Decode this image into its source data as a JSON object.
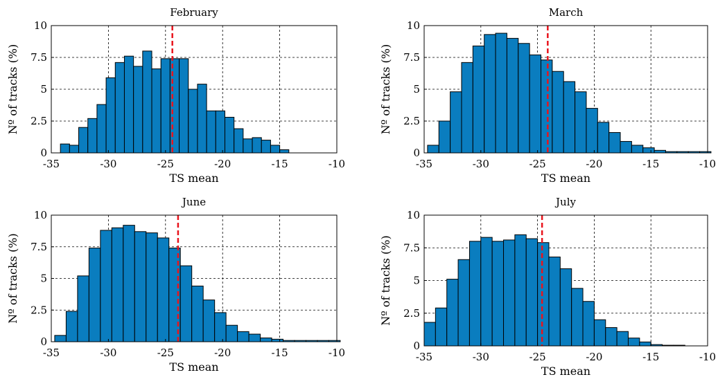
{
  "chart_data": [
    {
      "type": "bar",
      "title": "February",
      "xlabel": "TS mean",
      "ylabel": "Nº of tracks (%)",
      "xlim": [
        -35,
        -10
      ],
      "ylim": [
        0,
        10
      ],
      "xticks": [
        "-35",
        "-30",
        "-25",
        "-20",
        "-15",
        "-10"
      ],
      "yticks": [
        "0",
        "2.5",
        "5",
        "7.5",
        "10"
      ],
      "grid": true,
      "bin_width": 0.8,
      "bins_start": [
        -34.2,
        -33.4,
        -32.6,
        -31.8,
        -31.0,
        -30.2,
        -29.4,
        -28.6,
        -27.8,
        -27.0,
        -26.2,
        -25.4,
        -24.6,
        -23.8,
        -23.0,
        -22.2,
        -21.4,
        -20.6,
        -19.8,
        -19.0,
        -18.2,
        -17.4,
        -16.6,
        -15.8,
        -15.0
      ],
      "values": [
        0.7,
        0.6,
        2.0,
        2.7,
        3.8,
        5.9,
        7.1,
        7.6,
        6.8,
        8.0,
        6.6,
        7.4,
        7.4,
        7.4,
        5.0,
        5.4,
        3.3,
        3.3,
        2.8,
        1.9,
        1.1,
        1.2,
        1.0,
        0.6,
        0.25
      ],
      "mean_line": -24.4
    },
    {
      "type": "bar",
      "title": "March",
      "xlabel": "TS mean",
      "ylabel": "Nº of tracks (%)",
      "xlim": [
        -35,
        -10
      ],
      "ylim": [
        0,
        10
      ],
      "xticks": [
        "-35",
        "-30",
        "-25",
        "-20",
        "-15",
        "-10"
      ],
      "yticks": [
        "0",
        "2.5",
        "5",
        "7.5",
        "10"
      ],
      "grid": true,
      "bin_width": 1.0,
      "bins_start": [
        -34.7,
        -33.7,
        -32.7,
        -31.7,
        -30.7,
        -29.7,
        -28.7,
        -27.7,
        -26.7,
        -25.7,
        -24.7,
        -23.7,
        -22.7,
        -21.7,
        -20.7,
        -19.7,
        -18.7,
        -17.7,
        -16.7,
        -15.7,
        -14.7,
        -13.7,
        -12.7,
        -11.7,
        -10.7
      ],
      "values": [
        0.6,
        2.5,
        4.8,
        7.1,
        8.4,
        9.3,
        9.4,
        9.0,
        8.6,
        7.7,
        7.3,
        6.4,
        5.6,
        4.8,
        3.5,
        2.4,
        1.6,
        0.9,
        0.6,
        0.4,
        0.2,
        0.1,
        0.1,
        0.1,
        0.1
      ],
      "mean_line": -24.1
    },
    {
      "type": "bar",
      "title": "June",
      "xlabel": "TS mean",
      "ylabel": "Nº of tracks (%)",
      "xlim": [
        -35,
        -10
      ],
      "ylim": [
        0,
        10
      ],
      "xticks": [
        "-35",
        "-30",
        "-25",
        "-20",
        "-15",
        "-10"
      ],
      "yticks": [
        "0",
        "2.5",
        "5",
        "7.5",
        "10"
      ],
      "grid": true,
      "bin_width": 1.0,
      "bins_start": [
        -34.7,
        -33.7,
        -32.7,
        -31.7,
        -30.7,
        -29.7,
        -28.7,
        -27.7,
        -26.7,
        -25.7,
        -24.7,
        -23.7,
        -22.7,
        -21.7,
        -20.7,
        -19.7,
        -18.7,
        -17.7,
        -16.7,
        -15.7,
        -14.7,
        -13.7,
        -12.7,
        -11.7,
        -10.7
      ],
      "values": [
        0.5,
        2.4,
        5.2,
        7.4,
        8.8,
        9.0,
        9.2,
        8.7,
        8.6,
        8.2,
        7.4,
        6.0,
        4.4,
        3.3,
        2.3,
        1.3,
        0.8,
        0.6,
        0.3,
        0.2,
        0.1,
        0.1,
        0.1,
        0.1,
        0.1
      ],
      "mean_line": -23.9
    },
    {
      "type": "bar",
      "title": "July",
      "xlabel": "TS mean",
      "ylabel": "Nº of tracks (%)",
      "xlim": [
        -35,
        -10
      ],
      "ylim": [
        0,
        10
      ],
      "xticks": [
        "-35",
        "-30",
        "-25",
        "-20",
        "-15",
        "-10"
      ],
      "yticks": [
        "0",
        "2.5",
        "5",
        "7.5",
        "10"
      ],
      "grid": true,
      "bin_width": 1.0,
      "bins_start": [
        -35.0,
        -34.0,
        -33.0,
        -32.0,
        -31.0,
        -30.0,
        -29.0,
        -28.0,
        -27.0,
        -26.0,
        -25.0,
        -24.0,
        -23.0,
        -22.0,
        -21.0,
        -20.0,
        -19.0,
        -18.0,
        -17.0,
        -16.0,
        -15.0,
        -14.0,
        -13.0
      ],
      "values": [
        1.8,
        2.9,
        5.1,
        6.6,
        8.0,
        8.3,
        8.0,
        8.1,
        8.5,
        8.2,
        7.9,
        6.8,
        5.9,
        4.4,
        3.4,
        2.0,
        1.4,
        1.1,
        0.6,
        0.3,
        0.1,
        0.05,
        0.05
      ],
      "mean_line": -24.6
    }
  ]
}
